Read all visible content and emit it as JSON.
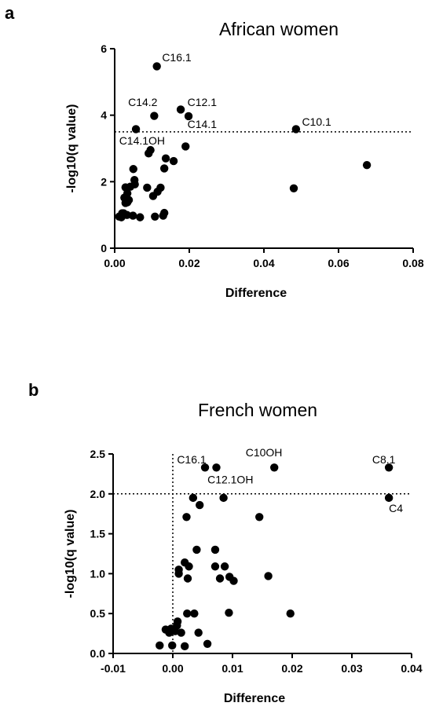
{
  "chart_data": [
    {
      "type": "scatter",
      "panel_label": "a",
      "title": "African women",
      "xlabel": "Difference",
      "ylabel": "-log10(q value)",
      "xlim": [
        0,
        0.08
      ],
      "ylim": [
        0,
        6
      ],
      "x_ticks": [
        "0.00",
        "0.02",
        "0.04",
        "0.06",
        "0.08"
      ],
      "y_ticks": [
        "0",
        "2",
        "4",
        "6"
      ],
      "x_tick_values": [
        0,
        0.02,
        0.04,
        0.06,
        0.08
      ],
      "y_tick_values": [
        0,
        2,
        4,
        6
      ],
      "threshold_y": 3.5,
      "grid": false,
      "points": [
        {
          "x": 0.0113,
          "y": 5.47
        },
        {
          "x": 0.0177,
          "y": 4.17
        },
        {
          "x": 0.0106,
          "y": 3.98
        },
        {
          "x": 0.0198,
          "y": 3.97
        },
        {
          "x": 0.0057,
          "y": 3.58
        },
        {
          "x": 0.0486,
          "y": 3.58
        },
        {
          "x": 0.019,
          "y": 3.06
        },
        {
          "x": 0.0096,
          "y": 2.95
        },
        {
          "x": 0.0091,
          "y": 2.85
        },
        {
          "x": 0.0137,
          "y": 2.7
        },
        {
          "x": 0.0158,
          "y": 2.62
        },
        {
          "x": 0.0676,
          "y": 2.5
        },
        {
          "x": 0.0133,
          "y": 2.4
        },
        {
          "x": 0.005,
          "y": 2.38
        },
        {
          "x": 0.0053,
          "y": 2.05
        },
        {
          "x": 0.0054,
          "y": 1.92
        },
        {
          "x": 0.0029,
          "y": 1.83
        },
        {
          "x": 0.0042,
          "y": 1.85
        },
        {
          "x": 0.0087,
          "y": 1.82
        },
        {
          "x": 0.0123,
          "y": 1.82
        },
        {
          "x": 0.048,
          "y": 1.8
        },
        {
          "x": 0.0115,
          "y": 1.7
        },
        {
          "x": 0.0034,
          "y": 1.65
        },
        {
          "x": 0.0103,
          "y": 1.57
        },
        {
          "x": 0.0026,
          "y": 1.52
        },
        {
          "x": 0.0038,
          "y": 1.45
        },
        {
          "x": 0.0029,
          "y": 1.36
        },
        {
          "x": 0.0034,
          "y": 1.38
        },
        {
          "x": 0.002,
          "y": 1.05
        },
        {
          "x": 0.0024,
          "y": 1.05
        },
        {
          "x": 0.0033,
          "y": 1.0
        },
        {
          "x": 0.0049,
          "y": 0.98
        },
        {
          "x": 0.0133,
          "y": 1.06
        },
        {
          "x": 0.0012,
          "y": 0.95
        },
        {
          "x": 0.0018,
          "y": 0.93
        },
        {
          "x": 0.0068,
          "y": 0.93
        },
        {
          "x": 0.0108,
          "y": 0.95
        },
        {
          "x": 0.013,
          "y": 0.98
        }
      ],
      "annotations": [
        {
          "text": "C16.1",
          "x": 0.0127,
          "y": 5.62
        },
        {
          "text": "C14.2",
          "x": 0.0036,
          "y": 4.27
        },
        {
          "text": "C12.1",
          "x": 0.0195,
          "y": 4.27
        },
        {
          "text": "C14.1",
          "x": 0.0195,
          "y": 3.62
        },
        {
          "text": "C10.1",
          "x": 0.0502,
          "y": 3.69
        },
        {
          "text": "C14.1OH",
          "x": 0.0012,
          "y": 3.12
        }
      ]
    },
    {
      "type": "scatter",
      "panel_label": "b",
      "title": "French women",
      "xlabel": "Difference",
      "ylabel": "-log10(q value)",
      "xlim": [
        -0.01,
        0.04
      ],
      "ylim": [
        0,
        2.5
      ],
      "x_ticks": [
        "-0.01",
        "0.00",
        "0.01",
        "0.02",
        "0.03",
        "0.04"
      ],
      "y_ticks": [
        "0.0",
        "0.5",
        "1.0",
        "1.5",
        "2.0",
        "2.5"
      ],
      "x_tick_values": [
        -0.01,
        0,
        0.01,
        0.02,
        0.03,
        0.04
      ],
      "y_tick_values": [
        0,
        0.5,
        1.0,
        1.5,
        2.0,
        2.5
      ],
      "threshold_y": 2.0,
      "vertical_line_x": 0,
      "grid": false,
      "points": [
        {
          "x": 0.0054,
          "y": 2.33
        },
        {
          "x": 0.0073,
          "y": 2.33
        },
        {
          "x": 0.017,
          "y": 2.33
        },
        {
          "x": 0.0362,
          "y": 2.33
        },
        {
          "x": 0.0034,
          "y": 1.95
        },
        {
          "x": 0.0085,
          "y": 1.95
        },
        {
          "x": 0.0362,
          "y": 1.95
        },
        {
          "x": 0.0045,
          "y": 1.86
        },
        {
          "x": 0.0023,
          "y": 1.71
        },
        {
          "x": 0.0145,
          "y": 1.71
        },
        {
          "x": 0.004,
          "y": 1.3
        },
        {
          "x": 0.0071,
          "y": 1.3
        },
        {
          "x": 0.002,
          "y": 1.14
        },
        {
          "x": 0.0027,
          "y": 1.09
        },
        {
          "x": 0.0071,
          "y": 1.09
        },
        {
          "x": 0.0087,
          "y": 1.09
        },
        {
          "x": 0.001,
          "y": 1.05
        },
        {
          "x": 0.001,
          "y": 1.0
        },
        {
          "x": 0.0095,
          "y": 0.96
        },
        {
          "x": 0.0079,
          "y": 0.94
        },
        {
          "x": 0.0102,
          "y": 0.91
        },
        {
          "x": 0.0025,
          "y": 0.94
        },
        {
          "x": 0.016,
          "y": 0.97
        },
        {
          "x": 0.0024,
          "y": 0.5
        },
        {
          "x": 0.0036,
          "y": 0.5
        },
        {
          "x": 0.0094,
          "y": 0.51
        },
        {
          "x": 0.0197,
          "y": 0.5
        },
        {
          "x": 0.0008,
          "y": 0.4
        },
        {
          "x": 0.0007,
          "y": 0.35
        },
        {
          "x": -0.0012,
          "y": 0.3
        },
        {
          "x": -0.0003,
          "y": 0.31
        },
        {
          "x": -0.0006,
          "y": 0.26
        },
        {
          "x": 0.0014,
          "y": 0.26
        },
        {
          "x": 0.0043,
          "y": 0.26
        },
        {
          "x": 0.0004,
          "y": 0.28
        },
        {
          "x": -0.0022,
          "y": 0.1
        },
        {
          "x": -0.0001,
          "y": 0.1
        },
        {
          "x": 0.002,
          "y": 0.09
        },
        {
          "x": 0.0058,
          "y": 0.12
        }
      ],
      "annotations": [
        {
          "text": "C16.1",
          "x": 0.0007,
          "y": 2.38
        },
        {
          "text": "C10OH",
          "x": 0.0122,
          "y": 2.47
        },
        {
          "text": "C8.1",
          "x": 0.0334,
          "y": 2.38
        },
        {
          "text": "C12.1OH",
          "x": 0.0058,
          "y": 2.13
        },
        {
          "text": "C4",
          "x": 0.0362,
          "y": 1.77
        }
      ]
    }
  ]
}
